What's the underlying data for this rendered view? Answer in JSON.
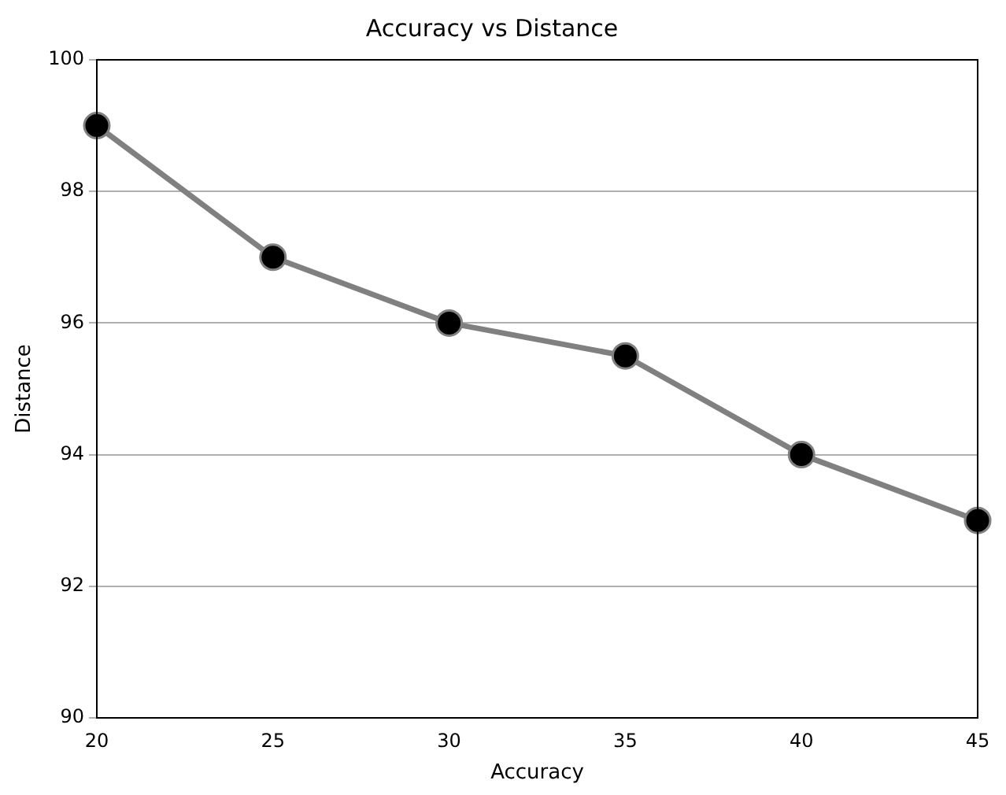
{
  "chart_data": {
    "type": "line",
    "title": "Accuracy vs Distance",
    "xlabel": "Accuracy",
    "ylabel": "Distance",
    "x": [
      20,
      25,
      30,
      35,
      40,
      45
    ],
    "series": [
      {
        "color": "#808080",
        "values": [
          99,
          97,
          96,
          95.5,
          94,
          93
        ]
      }
    ],
    "xlim": [
      20,
      45
    ],
    "xticks": [
      20,
      25,
      30,
      35,
      40,
      45
    ],
    "ylim": [
      90,
      100
    ],
    "yticks": [
      90,
      92,
      94,
      96,
      98,
      100
    ],
    "grid": "y",
    "marker": "circle",
    "line_style": "solid",
    "legend": false
  }
}
